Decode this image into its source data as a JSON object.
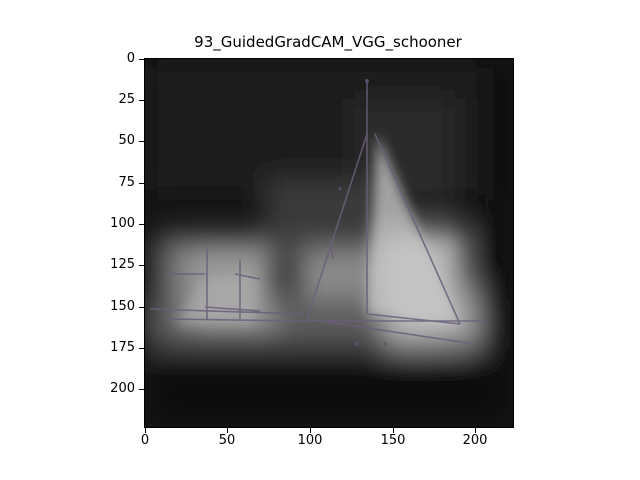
{
  "figure": {
    "title": "93_GuidedGradCAM_VGG_schooner",
    "image_description": "Guided Grad-CAM saliency map of a schooner / sailing ships scene in grayscale",
    "y_ticks": [
      "0",
      "25",
      "50",
      "75",
      "100",
      "125",
      "150",
      "175",
      "200"
    ],
    "x_ticks": [
      "0",
      "50",
      "100",
      "150",
      "200"
    ],
    "colors": {
      "background_dark": "#0c0c0c",
      "highlight": "#d8d8d8",
      "edge_tint": "#6a5f7a"
    }
  }
}
